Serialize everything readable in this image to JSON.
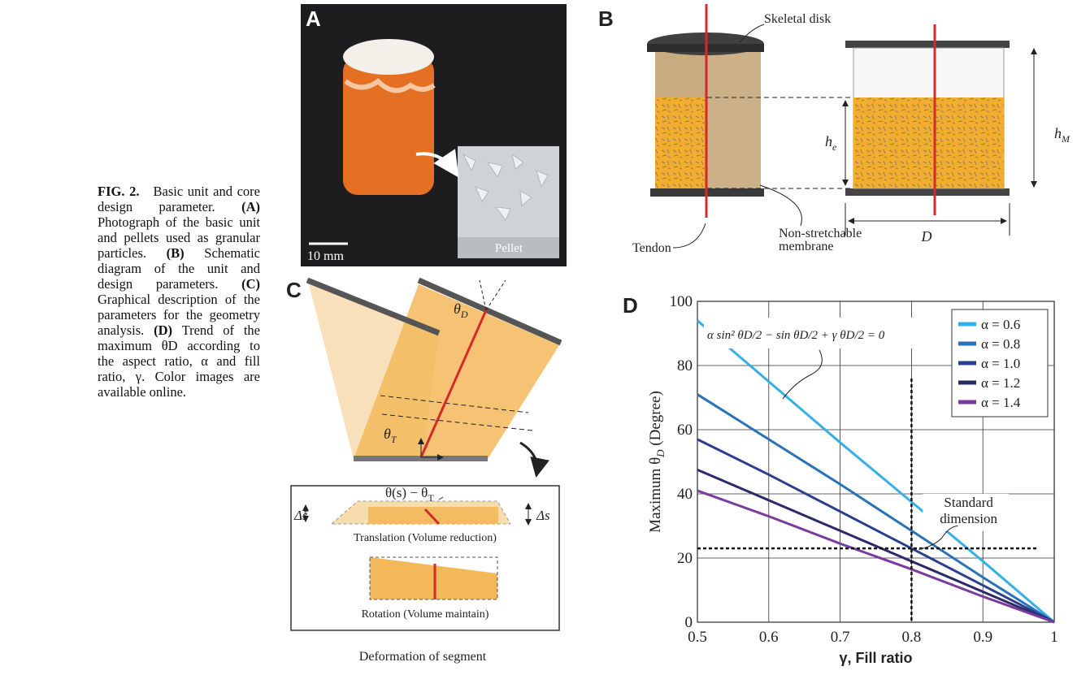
{
  "caption": {
    "label": "FIG. 2.",
    "title": "Basic unit and core design parameter.",
    "items": [
      {
        "tag": "(A)",
        "text": "Photograph of the basic unit and pellets used as granular particles."
      },
      {
        "tag": "(B)",
        "text": "Schematic diagram of the unit and design parameters."
      },
      {
        "tag": "(C)",
        "text": "Graphical description of the parameters for the geometry analysis."
      },
      {
        "tag": "(D)",
        "text": "Trend of the maximum θD according to the aspect ratio, α and fill ratio, γ."
      }
    ],
    "note": "Color images are available online."
  },
  "panel_a": {
    "label": "A",
    "scale": "10 mm",
    "inset": "Pellet"
  },
  "panel_b": {
    "label": "B",
    "skeletal_disk": "Skeletal disk",
    "tendon": "Tendon",
    "membrane": [
      "Non-stretchable",
      "membrane"
    ],
    "he": {
      "main": "h",
      "sub": "e"
    },
    "hm": {
      "main": "h",
      "sub": "M"
    },
    "d": "D"
  },
  "panel_c": {
    "label": "C",
    "theta_d": {
      "main": "θ",
      "sub": "D"
    },
    "theta_t": {
      "main": "θ",
      "sub": "T"
    },
    "theta_s": {
      "main": "θ(s) − θ",
      "sub": "T"
    },
    "ds_hat": "Δŝ",
    "ds": "Δs",
    "translation": "Translation (Volume reduction)",
    "rotation": "Rotation (Volume maintain)",
    "footer": "Deformation of segment"
  },
  "chart_data": {
    "type": "line",
    "panel_label": "D",
    "ylabel": {
      "before": "Maximum θ",
      "sub": "D",
      "after": " (Degree)"
    },
    "xlabel": "γ, Fill ratio",
    "equation": "α sin² θD/2 − sin θD/2 + γ θD/2 = 0",
    "annotation": [
      "Standard",
      "dimension"
    ],
    "x": [
      0.5,
      0.6,
      0.7,
      0.8,
      0.9,
      1
    ],
    "series": [
      {
        "name": "α = 0.6",
        "color": "#35b0e6",
        "values": [
          94,
          75,
          56,
          37.5,
          19,
          0
        ]
      },
      {
        "name": "α = 0.8",
        "color": "#2a72b8",
        "values": [
          71,
          57,
          43,
          28.5,
          14,
          0
        ]
      },
      {
        "name": "α = 1.0",
        "color": "#2c3f8e",
        "values": [
          57,
          46,
          34.5,
          23,
          11.5,
          0
        ]
      },
      {
        "name": "α = 1.2",
        "color": "#2a2a6a",
        "values": [
          47.5,
          38,
          28.5,
          19,
          9.5,
          0
        ]
      },
      {
        "name": "α = 1.4",
        "color": "#7a3a9e",
        "values": [
          41,
          33,
          24.5,
          16.5,
          8,
          0
        ]
      }
    ],
    "reference_lines": {
      "x": 0.8,
      "y": 23
    },
    "xlim": [
      0.5,
      1
    ],
    "ylim": [
      0,
      100
    ],
    "xticks": [
      0.5,
      0.6,
      0.7,
      0.8,
      0.9,
      1
    ],
    "yticks": [
      0,
      20,
      40,
      60,
      80,
      100
    ],
    "grid": true,
    "legend": "upper right"
  }
}
